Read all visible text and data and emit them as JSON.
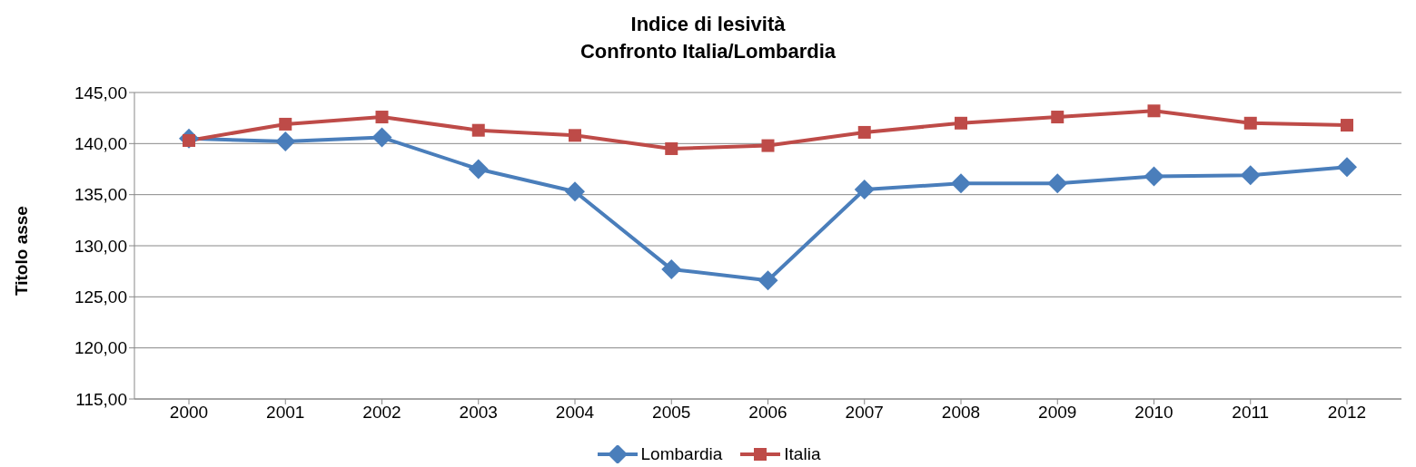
{
  "chart_data": {
    "type": "line",
    "title": "Indice di lesività\nConfronto Italia/Lombardia",
    "ylabel": "Titolo asse",
    "categories": [
      "2000",
      "2001",
      "2002",
      "2003",
      "2004",
      "2005",
      "2006",
      "2007",
      "2008",
      "2009",
      "2010",
      "2011",
      "2012"
    ],
    "series": [
      {
        "name": "Lombardia",
        "color": "#4a7ebb",
        "marker": "diamond",
        "values": [
          140.5,
          140.2,
          140.6,
          137.5,
          135.3,
          127.7,
          126.6,
          135.5,
          136.1,
          136.1,
          136.8,
          136.9,
          137.7
        ]
      },
      {
        "name": "Italia",
        "color": "#be4b48",
        "marker": "square",
        "values": [
          140.3,
          141.9,
          142.6,
          141.3,
          140.8,
          139.5,
          139.8,
          141.1,
          142.0,
          142.6,
          143.2,
          142.0,
          141.8
        ]
      }
    ],
    "ylim": [
      115,
      145
    ],
    "yticks": [
      {
        "value": 115,
        "label": "115,00"
      },
      {
        "value": 120,
        "label": "120,00"
      },
      {
        "value": 125,
        "label": "125,00"
      },
      {
        "value": 130,
        "label": "130,00"
      },
      {
        "value": 135,
        "label": "135,00"
      },
      {
        "value": 140,
        "label": "140,00"
      },
      {
        "value": 145,
        "label": "145,00"
      }
    ],
    "grid": "y",
    "legend": "bottom",
    "line_style": "solid"
  }
}
